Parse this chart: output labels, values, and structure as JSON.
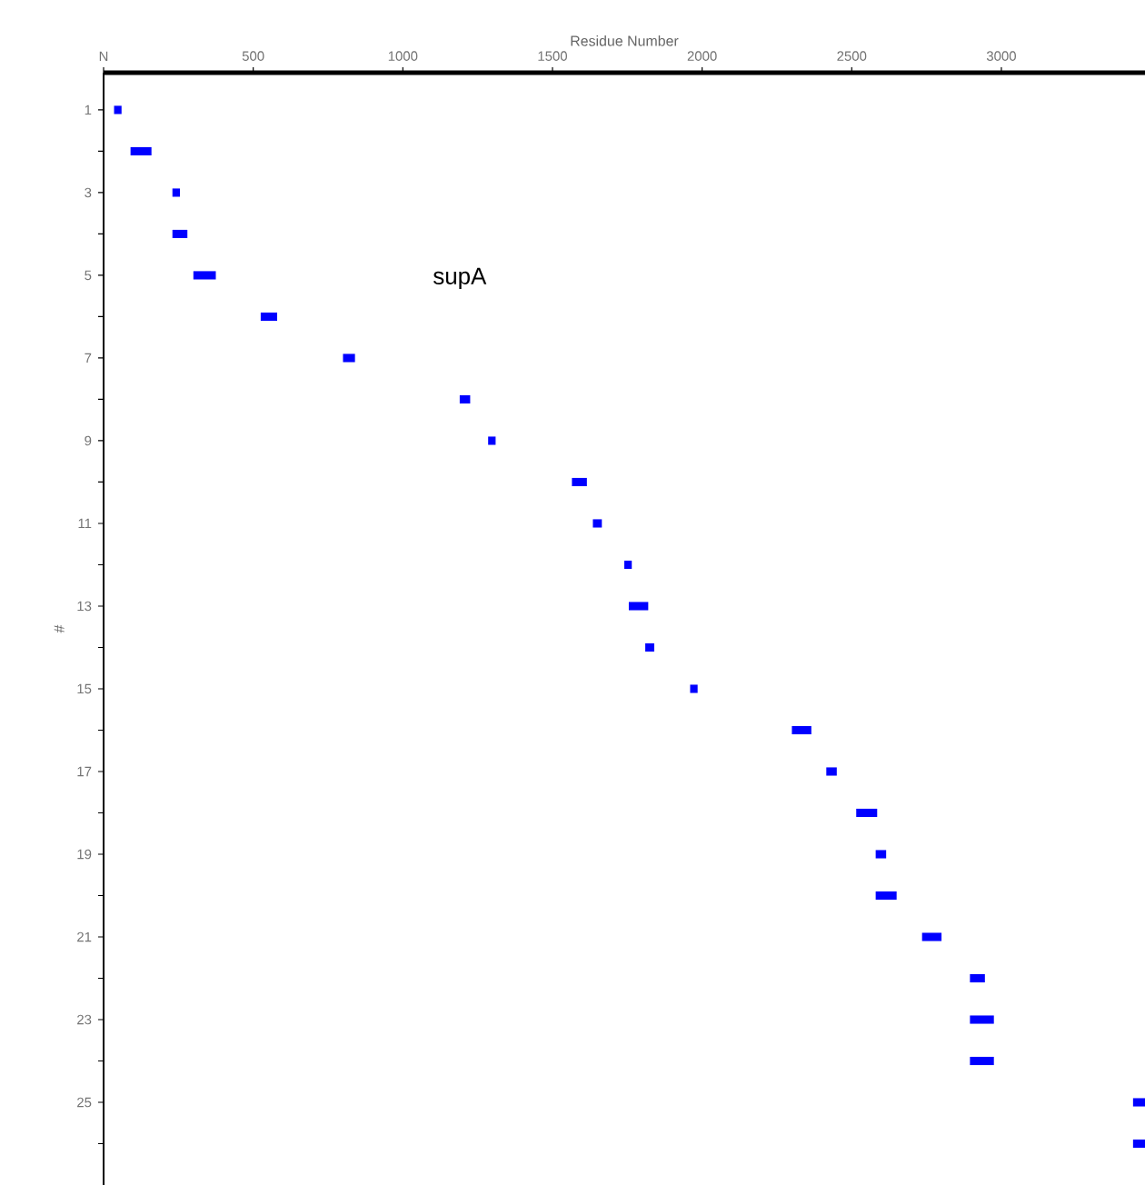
{
  "chart_data": {
    "type": "bar",
    "orientation": "horizontal",
    "xlabel": "Residue Number",
    "ylabel": "#",
    "categories": [
      "1",
      null,
      "3",
      null,
      "5",
      null,
      "7",
      null,
      "9",
      null,
      "11",
      null,
      "13",
      null,
      "15",
      null,
      "17",
      null,
      "19",
      null,
      "21",
      null,
      "23",
      null,
      "25",
      null
    ],
    "base": [
      35,
      90,
      230,
      230,
      300,
      525,
      800,
      1190,
      1285,
      1565,
      1635,
      1740,
      1755,
      1810,
      1960,
      2300,
      2415,
      2515,
      2580,
      2580,
      2735,
      2895,
      2895,
      2895,
      3440,
      3440
    ],
    "values": [
      25,
      70,
      25,
      50,
      75,
      55,
      40,
      35,
      25,
      50,
      30,
      25,
      65,
      30,
      25,
      65,
      35,
      70,
      35,
      70,
      65,
      50,
      80,
      80,
      40,
      40
    ],
    "color": "#0000ff",
    "xlim": [
      0,
      3480
    ],
    "xticks": [
      {
        "value": 0,
        "label": "N"
      },
      500,
      1000,
      1500,
      2000,
      2500,
      3000
    ],
    "annotations": [
      "supA"
    ]
  }
}
